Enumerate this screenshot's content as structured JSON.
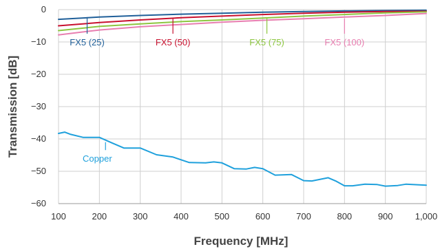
{
  "chart_data": {
    "type": "line",
    "title": "",
    "xlabel": "Frequency [MHz]",
    "ylabel": "Transmission [dB]",
    "xlim": [
      100,
      1000
    ],
    "ylim": [
      -60,
      0
    ],
    "x_ticks": [
      "100",
      "200",
      "300",
      "400",
      "500",
      "600",
      "700",
      "800",
      "900",
      "1,000"
    ],
    "x_tick_values": [
      100,
      200,
      300,
      400,
      500,
      600,
      700,
      800,
      900,
      1000
    ],
    "y_ticks": [
      "0",
      "−10",
      "−20",
      "−30",
      "−40",
      "−50",
      "−60"
    ],
    "y_tick_values": [
      0,
      -10,
      -20,
      -30,
      -40,
      -50,
      -60
    ],
    "grid": true,
    "legend": "inline labels with leader lines",
    "series": [
      {
        "name": "FX5 (25)",
        "color": "#1f5f99",
        "label_at": [
          170,
          -10
        ],
        "anchor": [
          170,
          -2.3
        ],
        "x": [
          100,
          200,
          300,
          400,
          500,
          600,
          700,
          800,
          900,
          1000
        ],
        "y": [
          -3.0,
          -2.3,
          -1.8,
          -1.4,
          -1.1,
          -0.8,
          -0.6,
          -0.4,
          -0.3,
          -0.2
        ]
      },
      {
        "name": "FX5 (50)",
        "color": "#c8102e",
        "label_at": [
          380,
          -10
        ],
        "anchor": [
          380,
          -2.6
        ],
        "x": [
          100,
          200,
          300,
          400,
          500,
          600,
          700,
          800,
          900,
          1000
        ],
        "y": [
          -5.0,
          -4.0,
          -3.2,
          -2.5,
          -2.0,
          -1.5,
          -1.1,
          -0.8,
          -0.6,
          -0.5
        ]
      },
      {
        "name": "FX5 (75)",
        "color": "#8cc63f",
        "label_at": [
          610,
          -10
        ],
        "anchor": [
          610,
          -2.5
        ],
        "x": [
          100,
          200,
          300,
          400,
          500,
          600,
          700,
          800,
          900,
          1000
        ],
        "y": [
          -6.5,
          -5.2,
          -4.4,
          -3.7,
          -3.2,
          -2.6,
          -2.0,
          -1.5,
          -1.0,
          -0.7
        ]
      },
      {
        "name": "FX5 (100)",
        "color": "#e87eb0",
        "label_at": [
          800,
          -10
        ],
        "anchor": [
          800,
          -2.8
        ],
        "x": [
          100,
          200,
          300,
          400,
          500,
          600,
          700,
          800,
          900,
          1000
        ],
        "y": [
          -7.8,
          -6.3,
          -5.3,
          -4.6,
          -3.9,
          -3.3,
          -2.8,
          -2.3,
          -1.8,
          -1.2
        ]
      },
      {
        "name": "Copper",
        "color": "#1ea0dc",
        "label_at": [
          195,
          -46
        ],
        "anchor": [
          215,
          -41
        ],
        "x": [
          100,
          115,
          130,
          160,
          200,
          230,
          260,
          300,
          340,
          380,
          420,
          460,
          480,
          500,
          530,
          560,
          580,
          600,
          630,
          670,
          700,
          720,
          760,
          780,
          800,
          820,
          850,
          880,
          900,
          930,
          950,
          1000
        ],
        "y": [
          -38.3,
          -37.9,
          -38.6,
          -39.5,
          -39.5,
          -41.2,
          -42.8,
          -42.8,
          -44.9,
          -45.6,
          -47.3,
          -47.4,
          -47.1,
          -47.4,
          -49.2,
          -49.3,
          -48.8,
          -49.2,
          -51.2,
          -51.0,
          -52.9,
          -53.0,
          -52.0,
          -53.1,
          -54.5,
          -54.5,
          -54.0,
          -54.1,
          -54.6,
          -54.4,
          -54.0,
          -54.3
        ]
      }
    ]
  }
}
